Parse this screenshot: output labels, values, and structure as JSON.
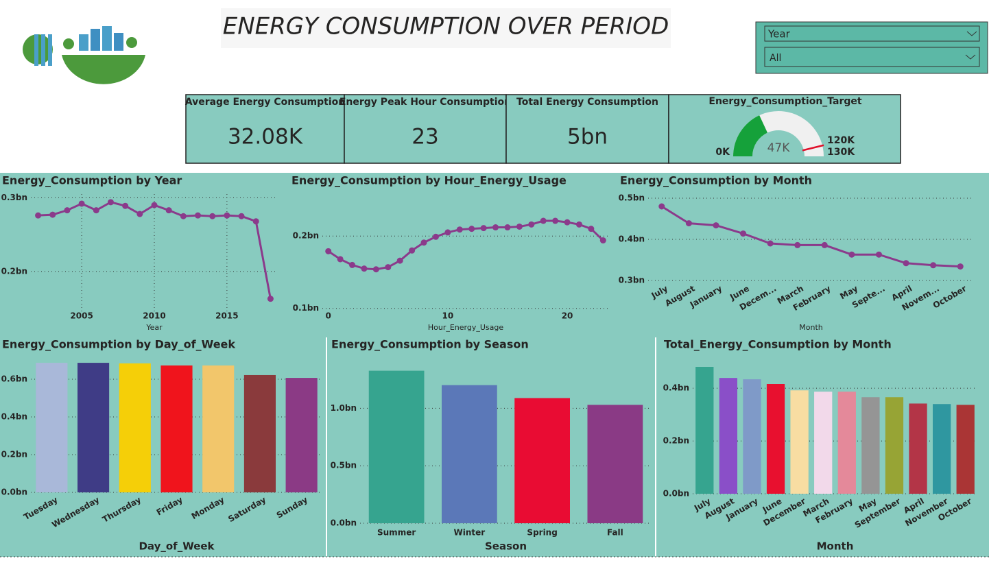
{
  "header": {
    "title": "ENERGY CONSUMPTION OVER PERIOD"
  },
  "slicer": {
    "field": "Year",
    "selection": "All"
  },
  "kpis": [
    {
      "label": "Average Energy Consumption",
      "value": "32.08K"
    },
    {
      "label": "Energy Peak Hour Consumption",
      "value": "23"
    },
    {
      "label": "Total Energy Consumption",
      "value": "5bn"
    }
  ],
  "chart_data": [
    {
      "type": "line",
      "title": "Energy_Consumption by Year",
      "x_label": "Year",
      "color": "#8b3a8b",
      "grid": true,
      "xgrid": true,
      "x": [
        2002,
        2003,
        2004,
        2005,
        2006,
        2007,
        2008,
        2009,
        2010,
        2011,
        2012,
        2013,
        2014,
        2015,
        2016,
        2017,
        2018
      ],
      "values": [
        0.276,
        0.277,
        0.283,
        0.292,
        0.283,
        0.294,
        0.289,
        0.278,
        0.29,
        0.283,
        0.275,
        0.276,
        0.275,
        0.276,
        0.275,
        0.268,
        0.163
      ],
      "xlim": [
        2001.5,
        2018.5
      ],
      "xticks": [
        2005,
        2010,
        2015
      ],
      "ylim": [
        0.145,
        0.305
      ],
      "yticks": [
        {
          "value": 0.2,
          "label": "0.2bn"
        },
        {
          "value": 0.3,
          "label": "0.3bn"
        }
      ]
    },
    {
      "type": "line",
      "title": "Energy_Consumption by Hour_Energy_Usage",
      "x_label": "Hour_Energy_Usage",
      "color": "#8b3a8b",
      "grid": true,
      "x": [
        0,
        1,
        2,
        3,
        4,
        5,
        6,
        7,
        8,
        9,
        10,
        11,
        12,
        13,
        14,
        15,
        16,
        17,
        18,
        19,
        20,
        21,
        22,
        23
      ],
      "values": [
        0.179,
        0.168,
        0.16,
        0.155,
        0.154,
        0.157,
        0.166,
        0.18,
        0.191,
        0.199,
        0.205,
        0.209,
        0.21,
        0.211,
        0.212,
        0.212,
        0.213,
        0.216,
        0.221,
        0.221,
        0.219,
        0.216,
        0.21,
        0.194
      ],
      "xlim": [
        -0.5,
        23.5
      ],
      "xticks": [
        0,
        10,
        20
      ],
      "ylim": [
        0.095,
        0.258
      ],
      "yticks": [
        {
          "value": 0.1,
          "label": "0.1bn"
        },
        {
          "value": 0.2,
          "label": "0.2bn"
        }
      ]
    },
    {
      "type": "line",
      "title": "Energy_Consumption by Month",
      "x_label": "Month",
      "color": "#8b3a8b",
      "grid": true,
      "categories": [
        "July",
        "August",
        "January",
        "June",
        "Decem...",
        "March",
        "February",
        "May",
        "Septe...",
        "April",
        "Novem...",
        "October"
      ],
      "values": [
        0.48,
        0.439,
        0.434,
        0.414,
        0.39,
        0.386,
        0.386,
        0.363,
        0.363,
        0.342,
        0.337,
        0.334
      ],
      "ylim": [
        0.295,
        0.51
      ],
      "yticks": [
        {
          "value": 0.3,
          "label": "0.3bn"
        },
        {
          "value": 0.4,
          "label": "0.4bn"
        },
        {
          "value": 0.5,
          "label": "0.5bn"
        }
      ]
    },
    {
      "type": "bar",
      "title": "Energy_Consumption by Day_of_Week",
      "x_label": "Day_of_Week",
      "grid": true,
      "categories": [
        "Tuesday",
        "Wednesday",
        "Thursday",
        "Friday",
        "Monday",
        "Saturday",
        "Sunday"
      ],
      "values": [
        0.687,
        0.687,
        0.684,
        0.673,
        0.673,
        0.622,
        0.607
      ],
      "colors": [
        "#a9b8d9",
        "#3f3c86",
        "#f5cf08",
        "#f0141c",
        "#f2c66b",
        "#8a3a3c",
        "#8b3a85"
      ],
      "ylim": [
        0,
        0.72
      ],
      "yticks": [
        {
          "value": 0,
          "label": "0.0bn"
        },
        {
          "value": 0.2,
          "label": "0.2bn"
        },
        {
          "value": 0.4,
          "label": "0.4bn"
        },
        {
          "value": 0.6,
          "label": "0.6bn"
        }
      ]
    },
    {
      "type": "bar",
      "title": "Energy_Consumption by Season",
      "x_label": "Season",
      "grid": true,
      "categories": [
        "Summer",
        "Winter",
        "Spring",
        "Fall"
      ],
      "values": [
        1.327,
        1.202,
        1.089,
        1.03
      ],
      "colors": [
        "#36a48f",
        "#5b78b8",
        "#e90c33",
        "#8a3a85"
      ],
      "ylim": [
        0,
        1.45
      ],
      "yticks": [
        {
          "value": 0,
          "label": "0.0bn"
        },
        {
          "value": 0.5,
          "label": "0.5bn"
        },
        {
          "value": 1.0,
          "label": "1.0bn"
        }
      ]
    },
    {
      "type": "bar",
      "title": "Total_Energy_Consumption by Month",
      "x_label": "Month",
      "grid": true,
      "categories": [
        "July",
        "August",
        "January",
        "June",
        "December",
        "March",
        "February",
        "May",
        "September",
        "April",
        "November",
        "October"
      ],
      "values": [
        0.481,
        0.439,
        0.434,
        0.416,
        0.392,
        0.387,
        0.387,
        0.366,
        0.366,
        0.342,
        0.34,
        0.337
      ],
      "colors": [
        "#36a48f",
        "#8a4fc8",
        "#7f9ac8",
        "#e8102f",
        "#f8dda2",
        "#f2d9ea",
        "#e4899a",
        "#959595",
        "#97a435",
        "#b33547",
        "#2f97a0",
        "#aa3535"
      ],
      "ylim": [
        0,
        0.52
      ],
      "yticks": [
        {
          "value": 0,
          "label": "0.0bn"
        },
        {
          "value": 0.2,
          "label": "0.2bn"
        },
        {
          "value": 0.4,
          "label": "0.4bn"
        }
      ]
    },
    {
      "type": "gauge",
      "title": "Energy_Consumption_Target",
      "values": [
        47
      ],
      "value_labels": [
        "47K"
      ],
      "color": "#15a13a",
      "ylim": [
        0,
        130
      ],
      "yticks": [
        {
          "value": 0,
          "label": "0K"
        },
        {
          "value": 130,
          "label": "130K"
        }
      ],
      "target": {
        "value": 120,
        "label": "120K"
      }
    }
  ]
}
